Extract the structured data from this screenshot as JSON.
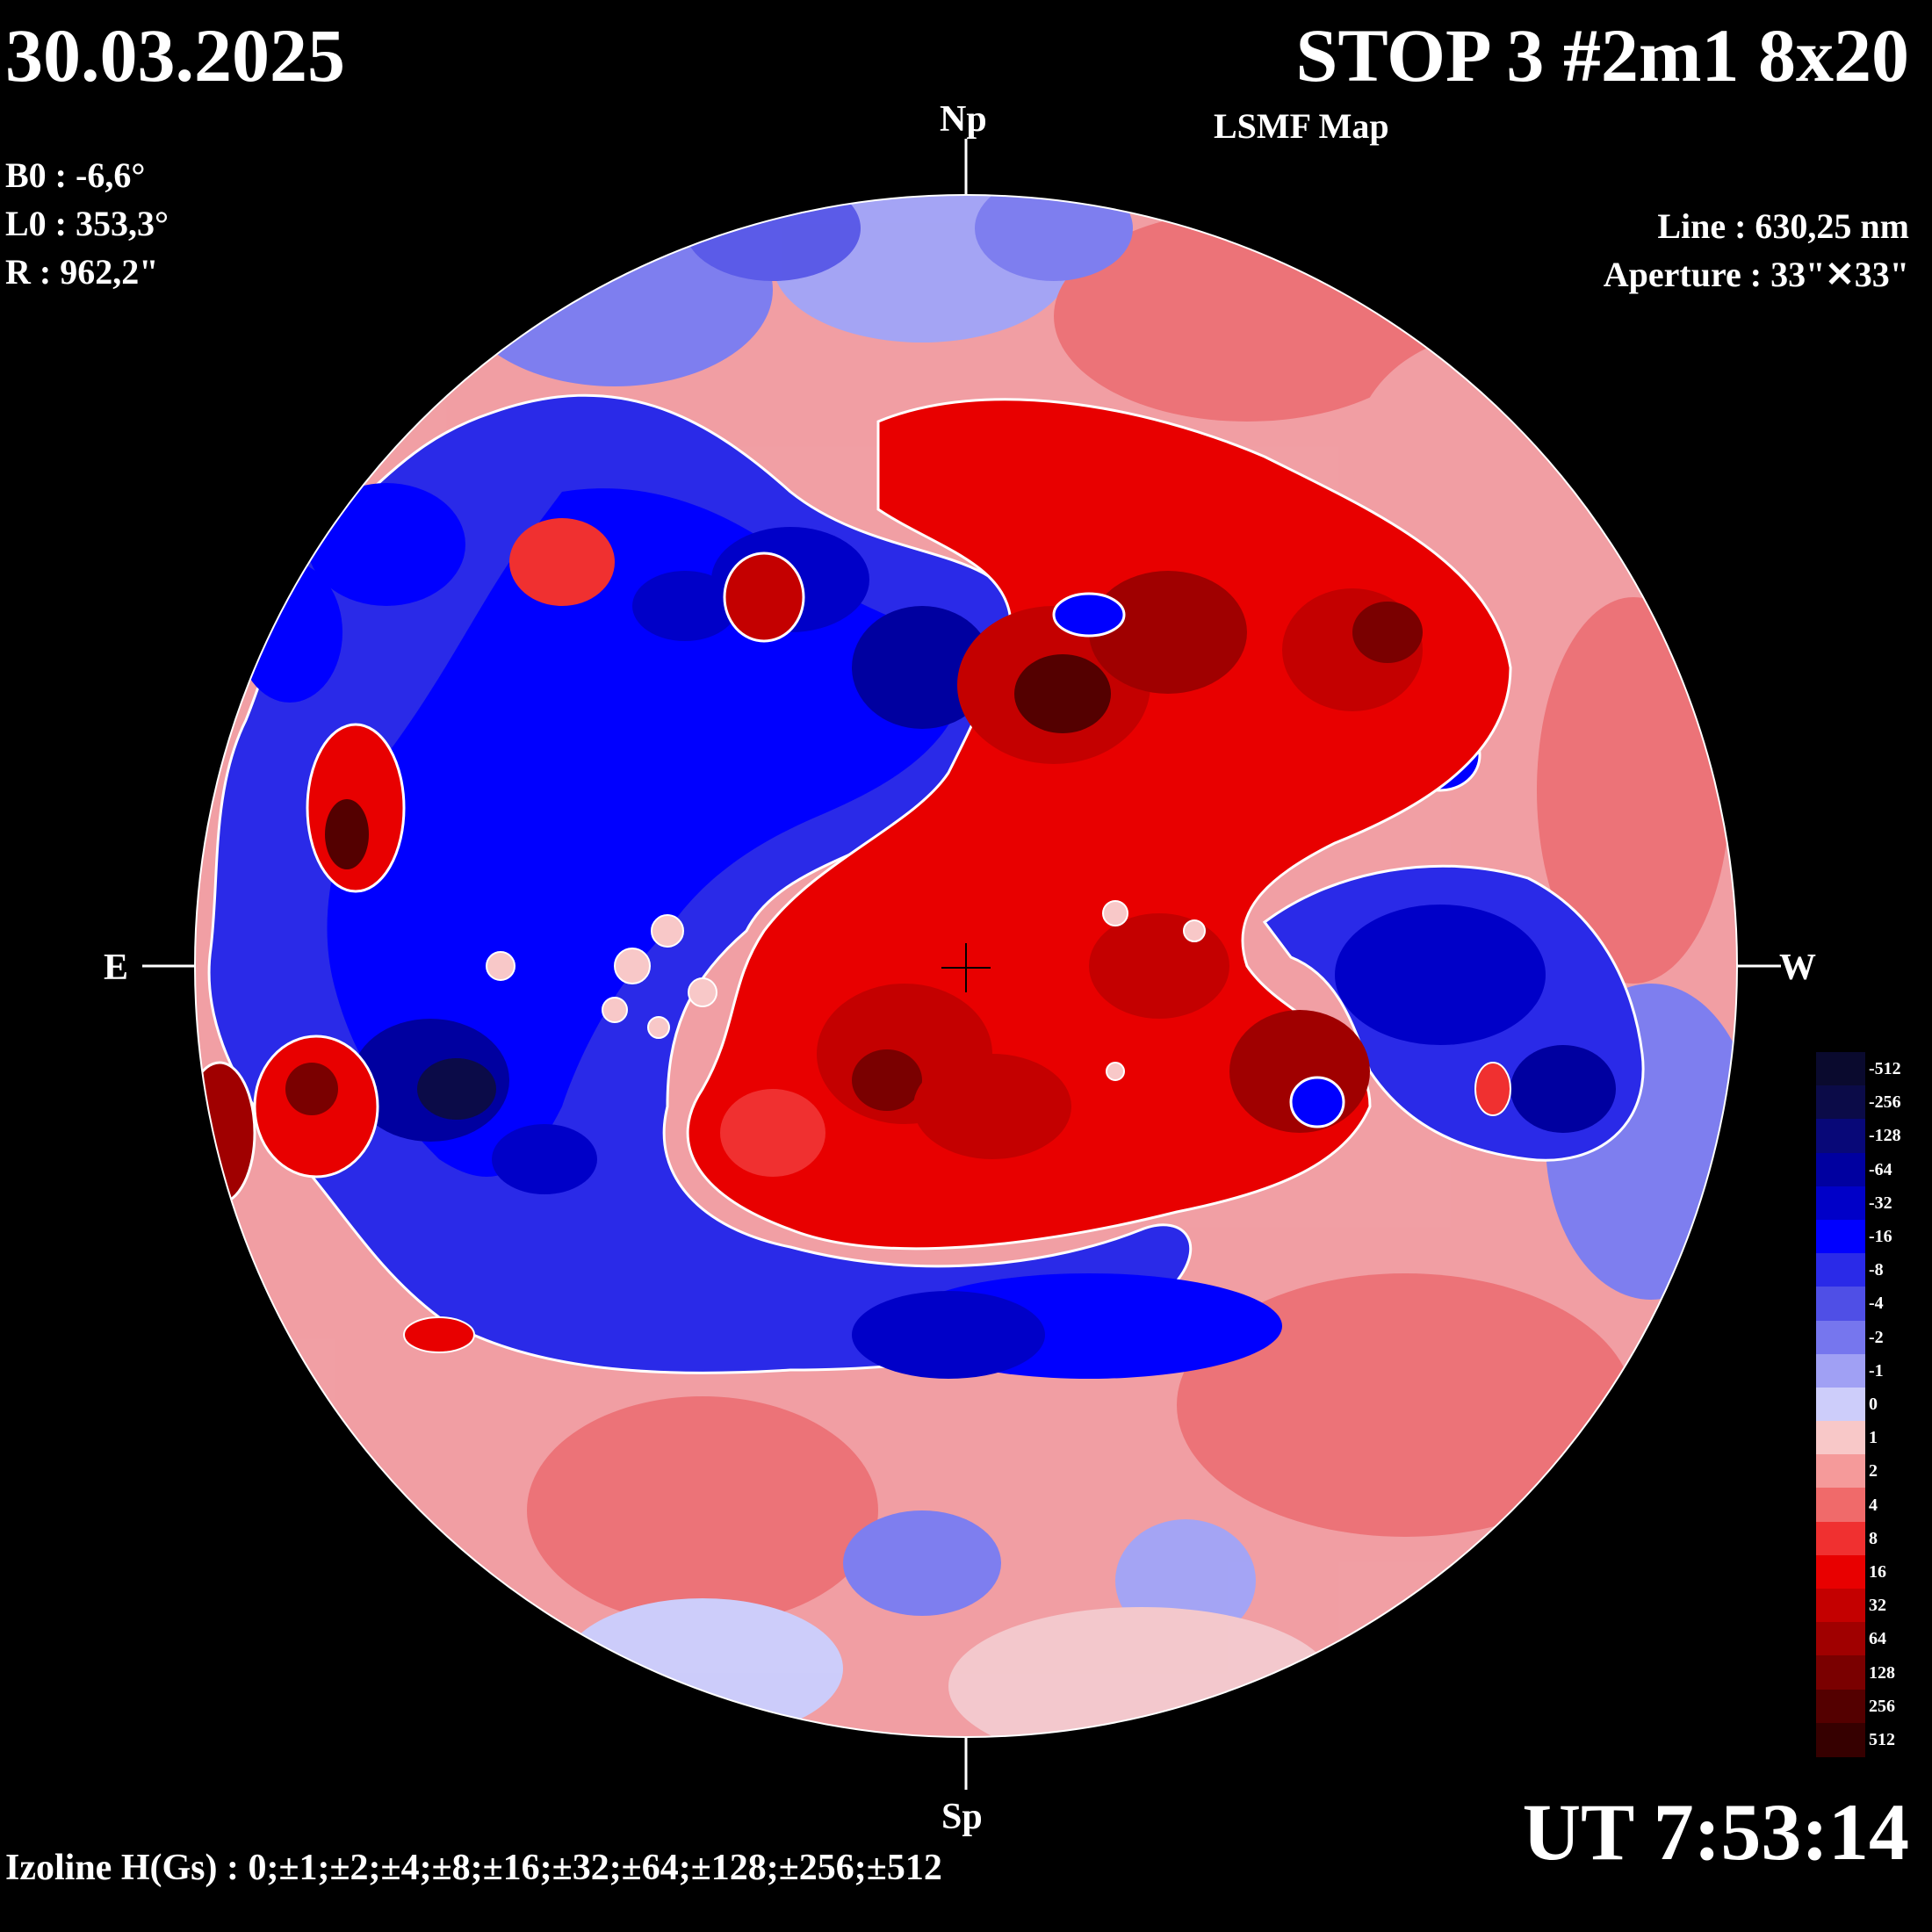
{
  "header": {
    "date": "30.03.2025",
    "title": "STOP 3 #2m1 8x20",
    "subtitle": "LSMF  Map"
  },
  "params": [
    "B0 : -6,6°",
    "L0 : 353,3°",
    "R  : 962,2\""
  ],
  "instrument": {
    "line": "Line :  630,25 nm",
    "aperture": "Aperture : 33\"✕33\""
  },
  "directions": {
    "north": "Np",
    "south": "Sp",
    "east": "E",
    "west": "W"
  },
  "time": "UT 7:53:14",
  "izoline": "Izoline H(Gs) : 0;±1;±2;±4;±8;±16;±32;±64;±128;±256;±512",
  "legend": {
    "labels": [
      "-512",
      "-256",
      "-128",
      "-64",
      "-32",
      "-16",
      "-8",
      "-4",
      "-2",
      "-1",
      "0",
      "1",
      "2",
      "4",
      "8",
      "16",
      "32",
      "64",
      "128",
      "256",
      "512"
    ],
    "colors": [
      "#0a0a2e",
      "#0b0b48",
      "#080878",
      "#0000a0",
      "#0000c8",
      "#0000ff",
      "#2a2ae8",
      "#4f4fe6",
      "#7676ee",
      "#a0a0f4",
      "#cdcdfa",
      "#f8c8c8",
      "#f59a9a",
      "#f06a6a",
      "#f03030",
      "#e80000",
      "#c40000",
      "#a00000",
      "#7a0000",
      "#540000",
      "#360000"
    ]
  },
  "map": {
    "background_color": "#cdcdfa",
    "positive_colors": [
      "#f8c8c8",
      "#f59a9a",
      "#f03030",
      "#c40000",
      "#7a0000"
    ],
    "negative_colors": [
      "#a0a0f4",
      "#4f4fe6",
      "#0000ff",
      "#0000a0",
      "#0b0b48"
    ],
    "contour_color": "#ffffff"
  }
}
